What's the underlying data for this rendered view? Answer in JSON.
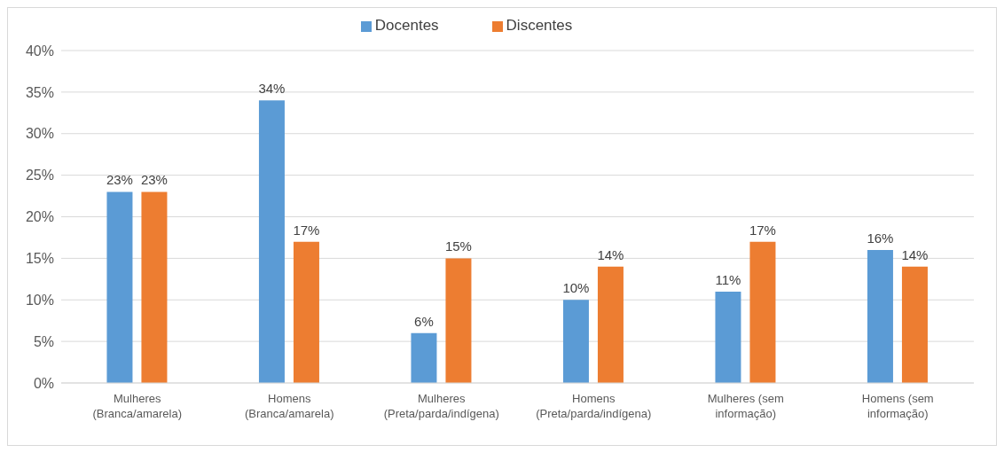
{
  "chart_data": {
    "type": "bar",
    "categories": [
      "Mulheres (Branca/amarela)",
      "Homens (Branca/amarela)",
      "Mulheres (Preta/parda/indígena)",
      "Homens (Preta/parda/indígena)",
      "Mulheres (sem informação)",
      "Homens (sem informação)"
    ],
    "series": [
      {
        "name": "Docentes",
        "color": "#5b9bd5",
        "values": [
          23,
          34,
          6,
          10,
          11,
          16
        ],
        "value_labels": [
          "23%",
          "34%",
          "6%",
          "10%",
          "11%",
          "16%"
        ]
      },
      {
        "name": "Discentes",
        "color": "#ed7d31",
        "values": [
          23,
          17,
          15,
          14,
          17,
          14
        ],
        "value_labels": [
          "23%",
          "17%",
          "15%",
          "14%",
          "17%",
          "14%"
        ]
      }
    ],
    "ylim": [
      0,
      40
    ],
    "yticks": [
      {
        "value": 0,
        "label": "0%"
      },
      {
        "value": 5,
        "label": "5%"
      },
      {
        "value": 10,
        "label": "10%"
      },
      {
        "value": 15,
        "label": "15%"
      },
      {
        "value": 20,
        "label": "20%"
      },
      {
        "value": 25,
        "label": "25%"
      },
      {
        "value": 30,
        "label": "30%"
      },
      {
        "value": 35,
        "label": "35%"
      },
      {
        "value": 40,
        "label": "40%"
      }
    ],
    "grid": "y",
    "legend": "top"
  }
}
